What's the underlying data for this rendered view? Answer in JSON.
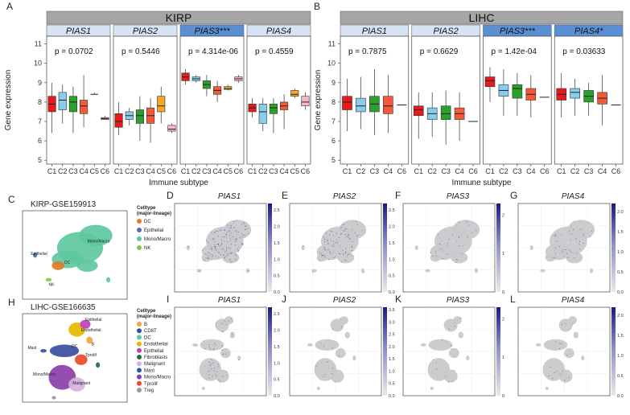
{
  "colors": {
    "C1": "#e41a1c",
    "C2": "#87ceeb",
    "C3": "#2ca02c",
    "C4": "#f4593a",
    "C5": "#f5a623",
    "C6": "#f8b4c8",
    "strip_group": "#a6a6a6",
    "strip_gene": "#d6e4f5",
    "strip_highlight": "#5b8fd4",
    "umap_gray": "#c9c9cc",
    "umap_blue": "#4b4fa8",
    "scale_top": "#1a1a80"
  },
  "chart_data": [
    {
      "type": "box",
      "panel": "A",
      "group_title": "KIRP",
      "ylabel": "Gene expression",
      "xlabel": "Immune subtype",
      "ylim": [
        4.8,
        11.4
      ],
      "yticks": [
        5,
        6,
        7,
        8,
        9,
        10,
        11
      ],
      "categories": [
        "C1",
        "C2",
        "C3",
        "C4",
        "C5",
        "C6"
      ],
      "facets": [
        {
          "gene": "PIAS1",
          "stars": "",
          "highlight": false,
          "pvalue": "p = 0.0702",
          "boxes": [
            [
              6.4,
              7.5,
              7.9,
              8.3,
              9.0
            ],
            [
              6.9,
              7.6,
              8.1,
              8.5,
              8.9
            ],
            [
              6.4,
              7.5,
              8.0,
              8.3,
              8.8
            ],
            [
              6.7,
              7.4,
              7.8,
              8.1,
              9.4
            ],
            [
              8.4,
              8.4,
              8.4,
              8.4,
              8.5
            ],
            [
              7.1,
              7.1,
              7.15,
              7.2,
              7.3
            ]
          ]
        },
        {
          "gene": "PIAS2",
          "stars": "",
          "highlight": false,
          "pvalue": "p = 0.5446",
          "boxes": [
            [
              6.3,
              6.7,
              7.0,
              7.4,
              8.0
            ],
            [
              6.8,
              7.1,
              7.3,
              7.5,
              7.7
            ],
            [
              6.0,
              6.9,
              7.3,
              7.6,
              8.3
            ],
            [
              5.9,
              6.9,
              7.3,
              7.7,
              8.2
            ],
            [
              6.9,
              7.5,
              7.8,
              8.3,
              8.8
            ],
            [
              6.4,
              6.5,
              6.6,
              6.8,
              6.9
            ]
          ]
        },
        {
          "gene": "PIAS3",
          "stars": "***",
          "highlight": true,
          "pvalue": "p = 4.314e-06",
          "boxes": [
            [
              8.9,
              9.1,
              9.3,
              9.5,
              9.7
            ],
            [
              9.0,
              9.1,
              9.2,
              9.3,
              9.4
            ],
            [
              8.3,
              8.7,
              8.9,
              9.1,
              9.4
            ],
            [
              8.0,
              8.4,
              8.6,
              8.8,
              9.1
            ],
            [
              8.6,
              8.65,
              8.7,
              8.8,
              8.9
            ],
            [
              9.0,
              9.1,
              9.2,
              9.3,
              9.4
            ]
          ]
        },
        {
          "gene": "PIAS4",
          "stars": "",
          "highlight": false,
          "pvalue": "p = 0.4559",
          "boxes": [
            [
              7.2,
              7.5,
              7.7,
              7.9,
              8.2
            ],
            [
              6.5,
              6.9,
              7.5,
              7.9,
              8.2
            ],
            [
              6.4,
              7.4,
              7.7,
              7.9,
              8.2
            ],
            [
              6.6,
              7.6,
              7.8,
              8.0,
              8.4
            ],
            [
              8.2,
              8.3,
              8.4,
              8.6,
              8.7
            ],
            [
              7.6,
              7.8,
              8.0,
              8.3,
              8.5
            ]
          ]
        }
      ]
    },
    {
      "type": "box",
      "panel": "B",
      "group_title": "LIHC",
      "ylabel": "Gene expression",
      "xlabel": "Immune subtype",
      "ylim": [
        4.8,
        11.4
      ],
      "yticks": [
        5,
        6,
        7,
        8,
        9,
        10,
        11
      ],
      "categories": [
        "C1",
        "C2",
        "C3",
        "C4",
        "C6"
      ],
      "facets": [
        {
          "gene": "PIAS1",
          "stars": "",
          "highlight": false,
          "pvalue": "p = 0.7875",
          "boxes": [
            [
              6.5,
              7.6,
              8.0,
              8.3,
              9.2
            ],
            [
              6.6,
              7.5,
              7.8,
              8.2,
              9.3
            ],
            [
              6.3,
              7.5,
              7.9,
              8.3,
              9.7
            ],
            [
              6.4,
              7.4,
              7.8,
              8.3,
              9.4
            ],
            [
              7.85,
              7.85,
              7.85,
              7.85,
              7.85
            ]
          ]
        },
        {
          "gene": "PIAS2",
          "stars": "",
          "highlight": false,
          "pvalue": "p = 0.6629",
          "boxes": [
            [
              6.1,
              7.3,
              7.6,
              7.8,
              8.5
            ],
            [
              6.2,
              7.1,
              7.4,
              7.7,
              8.5
            ],
            [
              5.8,
              7.1,
              7.4,
              7.8,
              8.6
            ],
            [
              6.0,
              7.1,
              7.4,
              7.7,
              8.5
            ],
            [
              7.0,
              7.0,
              7.0,
              7.0,
              7.0
            ]
          ]
        },
        {
          "gene": "PIAS3",
          "stars": "***",
          "highlight": true,
          "pvalue": "p = 1.42e-04",
          "boxes": [
            [
              8.0,
              8.8,
              9.1,
              9.3,
              9.8
            ],
            [
              7.3,
              8.3,
              8.6,
              8.9,
              9.7
            ],
            [
              7.3,
              8.2,
              8.7,
              8.9,
              9.5
            ],
            [
              7.2,
              8.1,
              8.4,
              8.7,
              9.4
            ],
            [
              8.25,
              8.25,
              8.25,
              8.25,
              8.25
            ]
          ]
        },
        {
          "gene": "PIAS4",
          "stars": "*",
          "highlight": true,
          "pvalue": "p = 0.03633",
          "boxes": [
            [
              7.2,
              8.1,
              8.4,
              8.7,
              9.5
            ],
            [
              7.3,
              8.2,
              8.5,
              8.7,
              9.2
            ],
            [
              7.3,
              8.0,
              8.3,
              8.6,
              9.0
            ],
            [
              6.8,
              7.9,
              8.2,
              8.5,
              9.4
            ],
            [
              7.85,
              7.85,
              7.85,
              7.85,
              7.85
            ]
          ]
        }
      ]
    }
  ],
  "panel_letters": {
    "A": "A",
    "B": "B",
    "C": "C",
    "D": "D",
    "E": "E",
    "F": "F",
    "G": "G",
    "H": "H",
    "I": "I",
    "J": "J",
    "K": "K",
    "L": "L"
  },
  "kirp_umap": {
    "title": "KIRP-GSE159913",
    "legend_title_1": "Celltype",
    "legend_title_2": "(major-lineage)",
    "legend": [
      {
        "label": "DC",
        "color": "#e07b2a"
      },
      {
        "label": "Epithelial",
        "color": "#4e6fa8"
      },
      {
        "label": "Mono/Macro",
        "color": "#5ec8a0"
      },
      {
        "label": "NK",
        "color": "#8bc34a"
      }
    ],
    "labels": {
      "epi": "Epithelial",
      "mono": "Mono/Macro",
      "dc": "DC",
      "nk": "NK"
    }
  },
  "lihc_umap": {
    "title": "LIHC-GSE166635",
    "legend_title_1": "Celltype",
    "legend_title_2": "(major-lineage)",
    "legend": [
      {
        "label": "B",
        "color": "#f2a33a"
      },
      {
        "label": "CD8T",
        "color": "#3b4ea0"
      },
      {
        "label": "DC",
        "color": "#5ec8a0"
      },
      {
        "label": "Endothelial",
        "color": "#e6b800"
      },
      {
        "label": "Epithelial",
        "color": "#c040c0"
      },
      {
        "label": "Fibroblasts",
        "color": "#1f6f3a"
      },
      {
        "label": "Malignant",
        "color": "#d4b3e0"
      },
      {
        "label": "Mast",
        "color": "#2d58a8"
      },
      {
        "label": "Mono/Macro",
        "color": "#8b3fa8"
      },
      {
        "label": "Tprolif",
        "color": "#e84a2a"
      },
      {
        "label": "Treg",
        "color": "#9a9a9a"
      }
    ],
    "labels": {
      "mast": "Mast",
      "mono": "Mono/Macro",
      "dc": "DC",
      "epi": "Epithelial",
      "endo": "Endothelial",
      "tprolif": "Tprolif",
      "b": "B",
      "malig": "Malignant"
    }
  },
  "feature_plots": [
    {
      "panel": "D",
      "gene": "PIAS1",
      "ticks": [
        "2.5",
        "2.0",
        "1.5",
        "1.0",
        "0.5",
        "0.0"
      ],
      "max": 2.7,
      "density": 0.55
    },
    {
      "panel": "E",
      "gene": "PIAS2",
      "ticks": [
        "2.5",
        "2.0",
        "1.5",
        "1.0",
        "0.5",
        "0.0"
      ],
      "max": 2.7,
      "density": 0.35
    },
    {
      "panel": "F",
      "gene": "PIAS3",
      "ticks": [
        "2",
        "1",
        "0"
      ],
      "max": 2.3,
      "density": 0.12
    },
    {
      "panel": "G",
      "gene": "PIAS4",
      "ticks": [
        "2.0",
        "1.5",
        "1.0",
        "0.5",
        "0.0"
      ],
      "max": 2.2,
      "density": 0.15
    },
    {
      "panel": "I",
      "gene": "PIAS1",
      "ticks": [
        "2.5",
        "2.0",
        "1.5",
        "1.0",
        "0.5",
        "0.0"
      ],
      "max": 2.7,
      "density": 0.35
    },
    {
      "panel": "J",
      "gene": "PIAS2",
      "ticks": [
        "3.5",
        "3.0",
        "2.5",
        "2.0",
        "1.5",
        "1.0",
        "0.5",
        "0.0"
      ],
      "max": 3.6,
      "density": 0.1
    },
    {
      "panel": "K",
      "gene": "PIAS3",
      "ticks": [
        "2",
        "1",
        "0"
      ],
      "max": 2.3,
      "density": 0.08
    },
    {
      "panel": "L",
      "gene": "PIAS4",
      "ticks": [
        "2.0",
        "1.5",
        "1.0",
        "0.5",
        "0.0"
      ],
      "max": 2.2,
      "density": 0.12
    }
  ]
}
